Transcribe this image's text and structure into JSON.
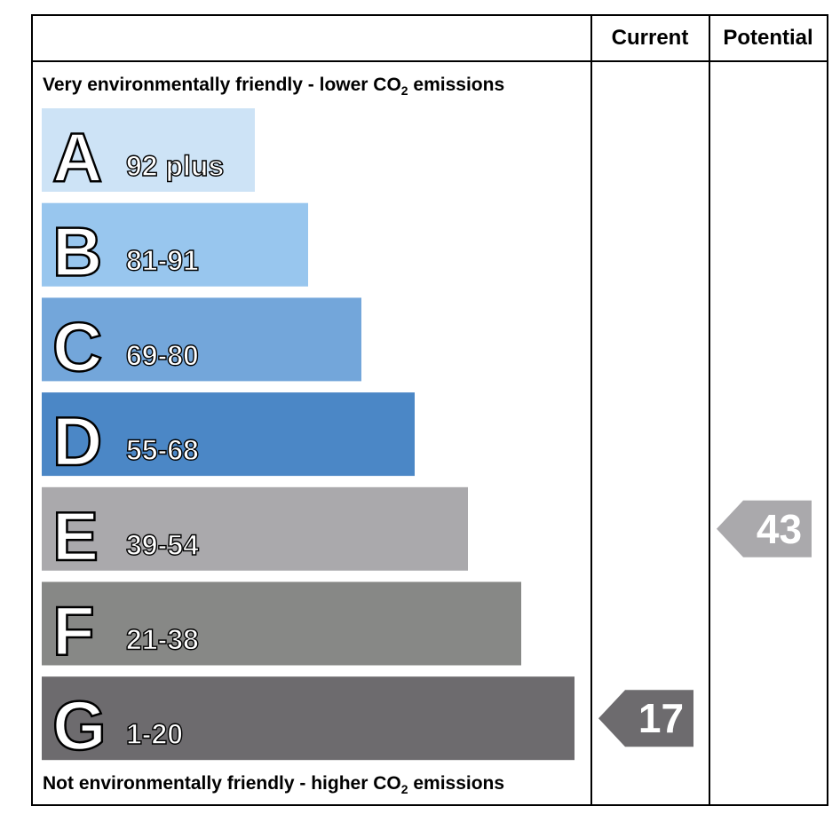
{
  "header": {
    "current_label": "Current",
    "potential_label": "Potential"
  },
  "captions": {
    "top_prefix": "Very environmentally friendly - lower CO",
    "top_sub": "2",
    "top_suffix": " emissions",
    "bottom_prefix": "Not environmentally friendly - higher CO",
    "bottom_sub": "2",
    "bottom_suffix": " emissions"
  },
  "chart_data": {
    "type": "bar",
    "categories": [
      "A",
      "B",
      "C",
      "D",
      "E",
      "F",
      "G"
    ],
    "bands": [
      {
        "letter": "A",
        "range": "92 plus",
        "min": 92,
        "max": null,
        "color": "#cde3f6"
      },
      {
        "letter": "B",
        "range": "81-91",
        "min": 81,
        "max": 91,
        "color": "#98c6ee"
      },
      {
        "letter": "C",
        "range": "69-80",
        "min": 69,
        "max": 80,
        "color": "#73a6da"
      },
      {
        "letter": "D",
        "range": "55-68",
        "min": 55,
        "max": 68,
        "color": "#4b87c6"
      },
      {
        "letter": "E",
        "range": "39-54",
        "min": 39,
        "max": 54,
        "color": "#aaa9ac"
      },
      {
        "letter": "F",
        "range": "21-38",
        "min": 21,
        "max": 38,
        "color": "#878886"
      },
      {
        "letter": "G",
        "range": "1-20",
        "min": 1,
        "max": 20,
        "color": "#6d6b6e"
      }
    ],
    "current": {
      "value": 17,
      "band": "G",
      "color": "#6d6b6e"
    },
    "potential": {
      "value": 43,
      "band": "E",
      "color": "#aaa9ac"
    }
  }
}
